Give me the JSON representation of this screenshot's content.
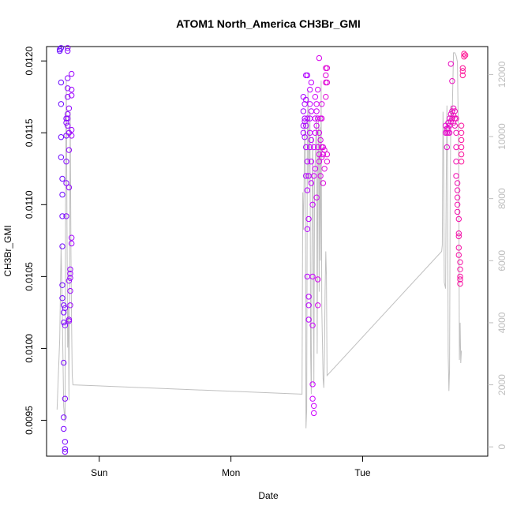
{
  "chart_data": {
    "type": "scatter",
    "title": "ATOM1 North_America CH3Br_GMI",
    "xlabel": "Date",
    "ylabel": "CH3Br_GMI",
    "x_ticks": [
      "Sun",
      "Mon",
      "Tue"
    ],
    "x_tick_positions_days": [
      1,
      2,
      3
    ],
    "xlim_days": [
      0.6,
      3.95
    ],
    "ylim": [
      0.00925,
      0.0121
    ],
    "y_ticks": [
      "0.0095",
      "0.0100",
      "0.0105",
      "0.0110",
      "0.0115",
      "0.0120"
    ],
    "y_tick_values": [
      0.0095,
      0.01,
      0.0105,
      0.011,
      0.0115,
      0.012
    ],
    "y2_ticks": [
      "0",
      "2000",
      "4000",
      "6000",
      "8000",
      "10000",
      "12000"
    ],
    "y2_tick_values": [
      0,
      2000,
      4000,
      6000,
      8000,
      10000,
      12000
    ],
    "y2lim": [
      -300,
      12900
    ],
    "grid": false,
    "legend": "none",
    "colors": {
      "series_start": "#6a0dff",
      "series_mid": "#cc00ff",
      "series_end": "#ff1493",
      "secondary_line": "#c0c0c0",
      "axis": "#000000",
      "secondary_axis": "#bdbdbd"
    },
    "series": [
      {
        "marker": "open-circle",
        "points": [
          [
            0.7,
            0.01208
          ],
          [
            0.7,
            0.01207
          ],
          [
            0.71,
            0.01209
          ],
          [
            0.71,
            0.01185
          ],
          [
            0.71,
            0.0117
          ],
          [
            0.71,
            0.01147
          ],
          [
            0.71,
            0.01133
          ],
          [
            0.72,
            0.01118
          ],
          [
            0.72,
            0.01107
          ],
          [
            0.72,
            0.01092
          ],
          [
            0.72,
            0.01071
          ],
          [
            0.72,
            0.01044
          ],
          [
            0.72,
            0.01035
          ],
          [
            0.73,
            0.0103
          ],
          [
            0.73,
            0.01025
          ],
          [
            0.73,
            0.01018
          ],
          [
            0.73,
            0.0099
          ],
          [
            0.73,
            0.00952
          ],
          [
            0.73,
            0.00944
          ],
          [
            0.74,
            0.00935
          ],
          [
            0.74,
            0.0093
          ],
          [
            0.74,
            0.00928
          ],
          [
            0.74,
            0.00965
          ],
          [
            0.74,
            0.01016
          ],
          [
            0.74,
            0.01028
          ],
          [
            0.75,
            0.0116
          ],
          [
            0.75,
            0.01157
          ],
          [
            0.75,
            0.01148
          ],
          [
            0.75,
            0.0113
          ],
          [
            0.75,
            0.01115
          ],
          [
            0.75,
            0.01092
          ],
          [
            0.76,
            0.01207
          ],
          [
            0.76,
            0.01209
          ],
          [
            0.76,
            0.01188
          ],
          [
            0.76,
            0.01181
          ],
          [
            0.76,
            0.01175
          ],
          [
            0.76,
            0.01163
          ],
          [
            0.76,
            0.0116
          ],
          [
            0.76,
            0.01155
          ],
          [
            0.77,
            0.01167
          ],
          [
            0.77,
            0.0115
          ],
          [
            0.77,
            0.01138
          ],
          [
            0.77,
            0.01112
          ],
          [
            0.77,
            0.01047
          ],
          [
            0.77,
            0.0102
          ],
          [
            0.77,
            0.01019
          ],
          [
            0.78,
            0.01055
          ],
          [
            0.78,
            0.01052
          ],
          [
            0.78,
            0.01049
          ],
          [
            0.78,
            0.0104
          ],
          [
            0.78,
            0.0103
          ],
          [
            0.79,
            0.01191
          ],
          [
            0.79,
            0.0118
          ],
          [
            0.79,
            0.01176
          ],
          [
            0.79,
            0.01152
          ],
          [
            0.79,
            0.01148
          ],
          [
            0.79,
            0.01077
          ],
          [
            0.79,
            0.01073
          ]
        ]
      },
      {
        "marker": "open-circle",
        "points": [
          [
            2.55,
            0.01175
          ],
          [
            2.55,
            0.01165
          ],
          [
            2.55,
            0.01155
          ],
          [
            2.55,
            0.0115
          ],
          [
            2.56,
            0.0117
          ],
          [
            2.56,
            0.0116
          ],
          [
            2.56,
            0.01158
          ],
          [
            2.56,
            0.01147
          ],
          [
            2.57,
            0.0119
          ],
          [
            2.57,
            0.01173
          ],
          [
            2.57,
            0.01155
          ],
          [
            2.57,
            0.0114
          ],
          [
            2.57,
            0.0112
          ],
          [
            2.58,
            0.0119
          ],
          [
            2.58,
            0.0116
          ],
          [
            2.58,
            0.0113
          ],
          [
            2.58,
            0.0111
          ],
          [
            2.58,
            0.01083
          ],
          [
            2.58,
            0.0105
          ],
          [
            2.59,
            0.01036
          ],
          [
            2.59,
            0.0103
          ],
          [
            2.59,
            0.0102
          ],
          [
            2.59,
            0.0109
          ],
          [
            2.59,
            0.0112
          ],
          [
            2.6,
            0.0118
          ],
          [
            2.6,
            0.0117
          ],
          [
            2.6,
            0.0116
          ],
          [
            2.6,
            0.0115
          ],
          [
            2.6,
            0.0114
          ],
          [
            2.61,
            0.01185
          ],
          [
            2.61,
            0.01165
          ],
          [
            2.61,
            0.01145
          ],
          [
            2.61,
            0.0113
          ],
          [
            2.61,
            0.01115
          ],
          [
            2.62,
            0.011
          ],
          [
            2.62,
            0.0105
          ],
          [
            2.62,
            0.01016
          ],
          [
            2.62,
            0.00975
          ],
          [
            2.62,
            0.00965
          ],
          [
            2.63,
            0.00955
          ],
          [
            2.63,
            0.0096
          ],
          [
            2.63,
            0.0112
          ],
          [
            2.63,
            0.0114
          ],
          [
            2.64,
            0.01175
          ],
          [
            2.64,
            0.0116
          ],
          [
            2.64,
            0.0115
          ],
          [
            2.64,
            0.01125
          ],
          [
            2.65,
            0.0117
          ],
          [
            2.65,
            0.01165
          ],
          [
            2.65,
            0.01155
          ],
          [
            2.65,
            0.01105
          ],
          [
            2.66,
            0.0118
          ],
          [
            2.66,
            0.0116
          ],
          [
            2.66,
            0.0114
          ],
          [
            2.66,
            0.01048
          ],
          [
            2.66,
            0.0103
          ],
          [
            2.67,
            0.01202
          ],
          [
            2.67,
            0.0115
          ],
          [
            2.67,
            0.01135
          ],
          [
            2.67,
            0.0113
          ],
          [
            2.68,
            0.0116
          ],
          [
            2.68,
            0.01145
          ],
          [
            2.68,
            0.0112
          ],
          [
            2.69,
            0.0117
          ],
          [
            2.69,
            0.0116
          ],
          [
            2.69,
            0.0114
          ],
          [
            2.69,
            0.01133
          ],
          [
            2.7,
            0.0114
          ],
          [
            2.7,
            0.01135
          ],
          [
            2.7,
            0.01115
          ],
          [
            2.71,
            0.01138
          ],
          [
            2.71,
            0.01125
          ],
          [
            2.72,
            0.01195
          ],
          [
            2.72,
            0.0119
          ],
          [
            2.72,
            0.01185
          ],
          [
            2.72,
            0.01175
          ],
          [
            2.73,
            0.01195
          ],
          [
            2.73,
            0.01185
          ],
          [
            2.73,
            0.01135
          ],
          [
            2.73,
            0.0113
          ]
        ]
      },
      {
        "marker": "open-circle",
        "points": [
          [
            3.63,
            0.01155
          ],
          [
            3.63,
            0.0115
          ],
          [
            3.64,
            0.01153
          ],
          [
            3.64,
            0.0115
          ],
          [
            3.64,
            0.0114
          ],
          [
            3.65,
            0.01157
          ],
          [
            3.65,
            0.01153
          ],
          [
            3.65,
            0.0115
          ],
          [
            3.66,
            0.0116
          ],
          [
            3.66,
            0.01155
          ],
          [
            3.66,
            0.0115
          ],
          [
            3.67,
            0.01163
          ],
          [
            3.67,
            0.01158
          ],
          [
            3.67,
            0.01198
          ],
          [
            3.68,
            0.01165
          ],
          [
            3.68,
            0.0116
          ],
          [
            3.68,
            0.01186
          ],
          [
            3.69,
            0.01167
          ],
          [
            3.69,
            0.01162
          ],
          [
            3.69,
            0.01157
          ],
          [
            3.7,
            0.01165
          ],
          [
            3.7,
            0.0116
          ],
          [
            3.7,
            0.01155
          ],
          [
            3.71,
            0.0116
          ],
          [
            3.71,
            0.0115
          ],
          [
            3.71,
            0.0114
          ],
          [
            3.71,
            0.0113
          ],
          [
            3.71,
            0.0112
          ],
          [
            3.72,
            0.01115
          ],
          [
            3.72,
            0.0111
          ],
          [
            3.72,
            0.01105
          ],
          [
            3.72,
            0.011
          ],
          [
            3.72,
            0.01095
          ],
          [
            3.73,
            0.0109
          ],
          [
            3.73,
            0.0108
          ],
          [
            3.73,
            0.01078
          ],
          [
            3.73,
            0.0107
          ],
          [
            3.73,
            0.01065
          ],
          [
            3.74,
            0.0106
          ],
          [
            3.74,
            0.01055
          ],
          [
            3.74,
            0.0105
          ],
          [
            3.74,
            0.01048
          ],
          [
            3.74,
            0.01045
          ],
          [
            3.75,
            0.01155
          ],
          [
            3.75,
            0.0115
          ],
          [
            3.75,
            0.01145
          ],
          [
            3.75,
            0.0114
          ],
          [
            3.75,
            0.01135
          ],
          [
            3.75,
            0.0113
          ],
          [
            3.76,
            0.01195
          ],
          [
            3.76,
            0.01193
          ],
          [
            3.76,
            0.0119
          ],
          [
            3.77,
            0.01205
          ],
          [
            3.77,
            0.01203
          ],
          [
            3.78,
            0.01204
          ]
        ]
      }
    ],
    "secondary_line": {
      "axis": "y2",
      "points": [
        [
          0.68,
          1200
        ],
        [
          0.7,
          3500
        ],
        [
          0.71,
          6500
        ],
        [
          0.72,
          4200
        ],
        [
          0.73,
          1300
        ],
        [
          0.74,
          800
        ],
        [
          0.745,
          9000
        ],
        [
          0.75,
          11800
        ],
        [
          0.755,
          7000
        ],
        [
          0.76,
          3200
        ],
        [
          0.765,
          4500
        ],
        [
          0.77,
          1500
        ],
        [
          0.775,
          6000
        ],
        [
          0.78,
          10800
        ],
        [
          0.785,
          6200
        ],
        [
          0.79,
          4000
        ],
        [
          0.795,
          2300
        ],
        [
          0.8,
          2000
        ],
        [
          2.54,
          1700
        ],
        [
          2.545,
          8200
        ],
        [
          2.55,
          7000
        ],
        [
          2.555,
          8300
        ],
        [
          2.56,
          10500
        ],
        [
          2.565,
          9500
        ],
        [
          2.57,
          600
        ],
        [
          2.575,
          1200
        ],
        [
          2.58,
          10000
        ],
        [
          2.585,
          11500
        ],
        [
          2.59,
          8500
        ],
        [
          2.6,
          10800
        ],
        [
          2.605,
          3000
        ],
        [
          2.61,
          1700
        ],
        [
          2.615,
          6000
        ],
        [
          2.62,
          10000
        ],
        [
          2.625,
          8000
        ],
        [
          2.63,
          2000
        ],
        [
          2.635,
          8500
        ],
        [
          2.64,
          9200
        ],
        [
          2.645,
          10000
        ],
        [
          2.65,
          10700
        ],
        [
          2.655,
          3000
        ],
        [
          2.66,
          9000
        ],
        [
          2.665,
          10500
        ],
        [
          2.67,
          5000
        ],
        [
          2.675,
          10300
        ],
        [
          2.68,
          6000
        ],
        [
          2.685,
          11800
        ],
        [
          2.69,
          4500
        ],
        [
          2.7,
          2200
        ],
        [
          2.705,
          1900
        ],
        [
          2.71,
          3000
        ],
        [
          2.715,
          5000
        ],
        [
          2.72,
          6300
        ],
        [
          2.725,
          5500
        ],
        [
          2.73,
          2300
        ],
        [
          3.6,
          6300
        ],
        [
          3.605,
          6500
        ],
        [
          3.61,
          10800
        ],
        [
          3.615,
          9500
        ],
        [
          3.62,
          5300
        ],
        [
          3.63,
          5100
        ],
        [
          3.635,
          8500
        ],
        [
          3.64,
          11000
        ],
        [
          3.645,
          8800
        ],
        [
          3.65,
          3000
        ],
        [
          3.655,
          1800
        ],
        [
          3.66,
          2500
        ],
        [
          3.665,
          8000
        ],
        [
          3.67,
          11000
        ],
        [
          3.68,
          10600
        ],
        [
          3.69,
          12700
        ],
        [
          3.7,
          12700
        ],
        [
          3.71,
          12600
        ],
        [
          3.72,
          12400
        ],
        [
          3.73,
          9000
        ],
        [
          3.735,
          2800
        ],
        [
          3.74,
          4000
        ],
        [
          3.745,
          2700
        ],
        [
          3.75,
          3100
        ]
      ]
    }
  }
}
